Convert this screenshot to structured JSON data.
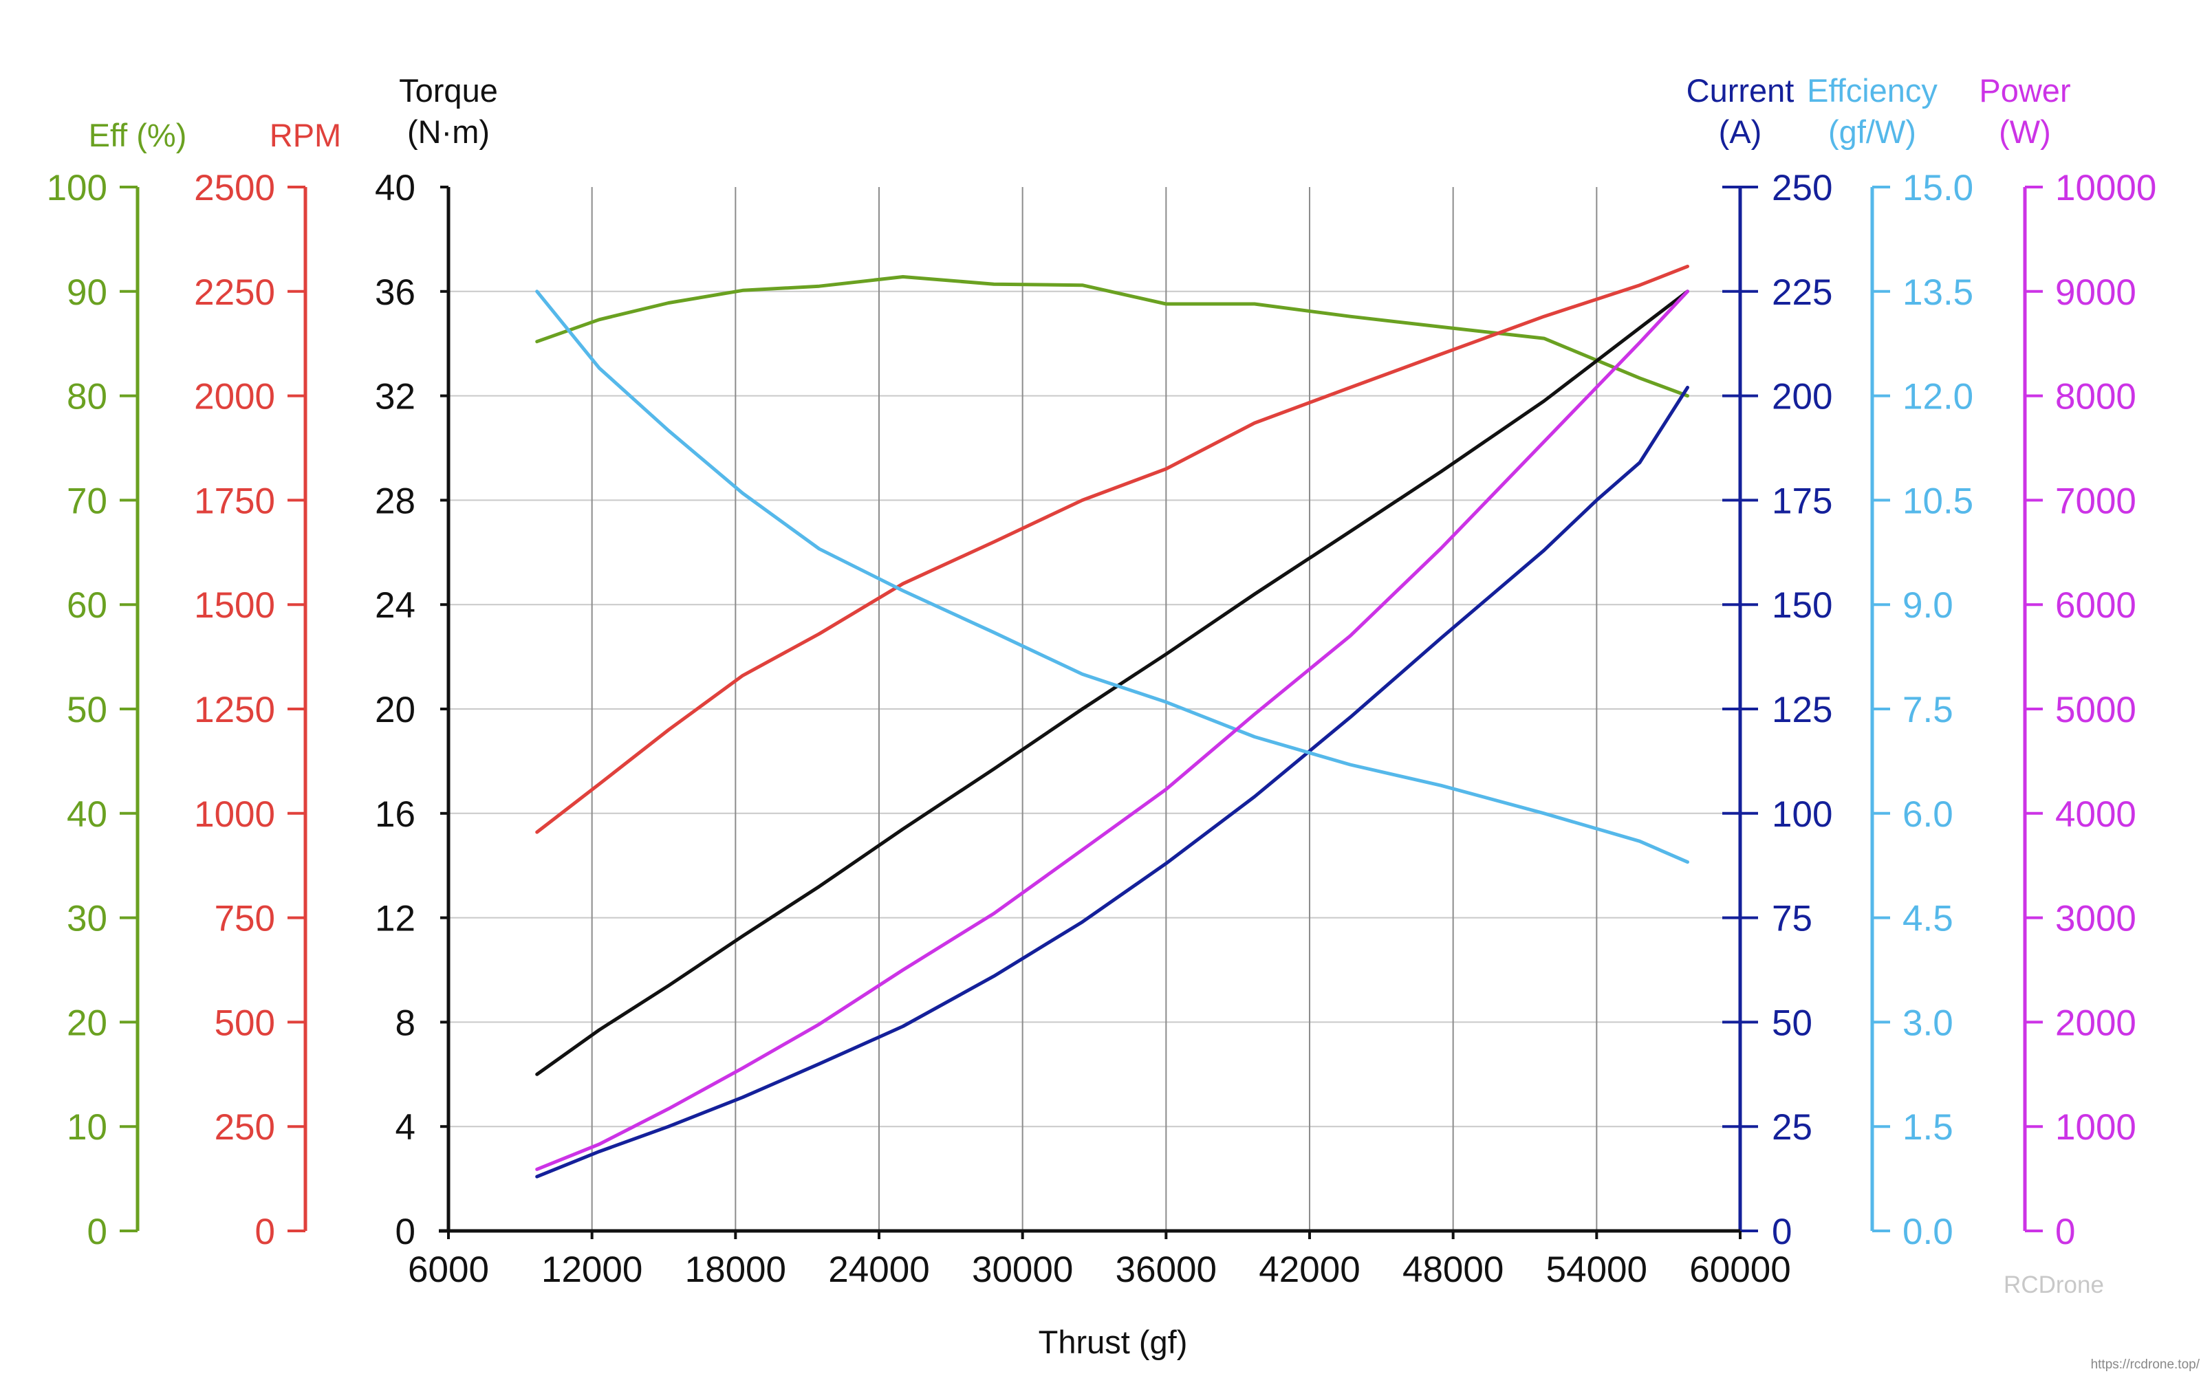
{
  "chart_data": {
    "type": "line",
    "xlabel": "Thrust (gf)",
    "xlim": [
      6000,
      60000
    ],
    "xticks": [
      6000,
      12000,
      18000,
      24000,
      30000,
      36000,
      42000,
      48000,
      54000,
      60000
    ],
    "grid": true,
    "axes": [
      {
        "id": "eff",
        "side": "left",
        "label": [
          "Eff (%)"
        ],
        "color": "#6aa121",
        "range": [
          0,
          100
        ],
        "ticks": [
          0,
          10,
          20,
          30,
          40,
          50,
          60,
          70,
          80,
          90,
          100
        ]
      },
      {
        "id": "rpm",
        "side": "left",
        "label": [
          "RPM"
        ],
        "color": "#e0413c",
        "range": [
          0,
          2500
        ],
        "ticks": [
          0,
          250,
          500,
          750,
          1000,
          1250,
          1500,
          1750,
          2000,
          2250,
          2500
        ]
      },
      {
        "id": "torque",
        "side": "left",
        "label": [
          "Torque",
          "(N·m)"
        ],
        "color": "#111111",
        "range": [
          0,
          40
        ],
        "ticks": [
          0,
          4,
          8,
          12,
          16,
          20,
          24,
          28,
          32,
          36,
          40
        ]
      },
      {
        "id": "current",
        "side": "right",
        "label": [
          "Current",
          "(A)"
        ],
        "color": "#14209a",
        "range": [
          0,
          250
        ],
        "ticks": [
          0,
          25,
          50,
          75,
          100,
          125,
          150,
          175,
          200,
          225,
          250
        ]
      },
      {
        "id": "gfw",
        "side": "right",
        "label": [
          "Effciency",
          "(gf/W)"
        ],
        "color": "#55b8ea",
        "range": [
          0,
          15
        ],
        "ticks": [
          "0.0",
          "1.5",
          "3.0",
          "4.5",
          "6.0",
          "7.5",
          "9.0",
          "10.5",
          "12.0",
          "13.5",
          "15.0"
        ]
      },
      {
        "id": "power",
        "side": "right",
        "label": [
          "Power",
          "(W)"
        ],
        "color": "#cc33e6",
        "range": [
          0,
          10000
        ],
        "ticks": [
          0,
          1000,
          2000,
          3000,
          4000,
          5000,
          6000,
          7000,
          8000,
          9000,
          10000
        ]
      }
    ],
    "series": [
      {
        "axis": "eff",
        "color": "#6aa121",
        "x": [
          9700,
          12300,
          15200,
          18300,
          21500,
          25000,
          28800,
          32500,
          36000,
          39700,
          43700,
          47500,
          51800,
          55800,
          57800
        ],
        "y": [
          85.2,
          87.3,
          88.9,
          90.1,
          90.5,
          91.4,
          90.7,
          90.6,
          88.8,
          88.8,
          87.6,
          86.6,
          85.5,
          81.7,
          80.0
        ]
      },
      {
        "axis": "rpm",
        "color": "#e0413c",
        "x": [
          9700,
          12300,
          15200,
          18300,
          21500,
          25000,
          28800,
          32500,
          36000,
          39700,
          43700,
          47500,
          51800,
          55800,
          57800
        ],
        "y": [
          955,
          1070,
          1200,
          1330,
          1430,
          1550,
          1650,
          1750,
          1825,
          1935,
          2020,
          2100,
          2190,
          2265,
          2310
        ]
      },
      {
        "axis": "torque",
        "color": "#111111",
        "x": [
          9700,
          12300,
          15200,
          18300,
          21500,
          25000,
          28800,
          32500,
          36000,
          39700,
          43700,
          47500,
          51800,
          55800,
          57800
        ],
        "y": [
          6.0,
          7.7,
          9.4,
          11.3,
          13.2,
          15.4,
          17.7,
          20.0,
          22.1,
          24.4,
          26.8,
          29.1,
          31.8,
          34.6,
          36.0
        ]
      },
      {
        "axis": "current",
        "color": "#14209a",
        "x": [
          9700,
          12300,
          15200,
          18300,
          21500,
          25000,
          28800,
          32500,
          36000,
          39700,
          43700,
          47500,
          51800,
          54000,
          55800,
          57800
        ],
        "y": [
          13,
          19,
          25,
          32,
          40,
          49,
          61,
          74,
          88,
          104,
          123,
          142,
          163,
          175,
          184,
          202
        ]
      },
      {
        "axis": "gfw",
        "color": "#55b8ea",
        "x": [
          9700,
          12300,
          15200,
          18300,
          21500,
          25000,
          28800,
          32500,
          36000,
          39700,
          43700,
          47500,
          51800,
          55800,
          57800
        ],
        "y": [
          13.5,
          12.4,
          11.5,
          10.6,
          9.8,
          9.2,
          8.6,
          8.0,
          7.6,
          7.1,
          6.7,
          6.4,
          6.0,
          5.6,
          5.3
        ]
      },
      {
        "axis": "power",
        "color": "#cc33e6",
        "x": [
          9700,
          12300,
          15200,
          18300,
          21500,
          25000,
          28800,
          32500,
          36000,
          39700,
          43700,
          47500,
          51800,
          55800,
          57800
        ],
        "y": [
          590,
          830,
          1170,
          1560,
          1980,
          2500,
          3040,
          3650,
          4230,
          4950,
          5700,
          6540,
          7560,
          8510,
          9000
        ]
      }
    ]
  },
  "watermark": {
    "brand": "RCDrone",
    "url": "https://rcdrone.top/"
  }
}
